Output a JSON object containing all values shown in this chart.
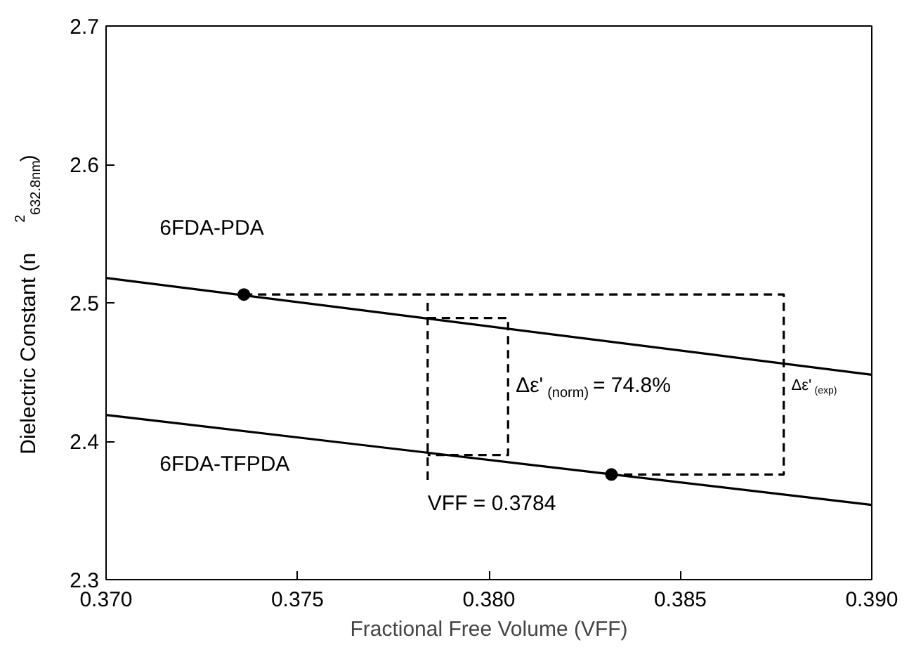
{
  "chart_data": {
    "type": "line",
    "xlabel": "Fractional Free Volume (VFF)",
    "ylabel": "Dielectric Constant (n$^{2}$$_{632.8nm}$)",
    "xlim": [
      0.37,
      0.39
    ],
    "xticks": [
      {
        "value": 0.37,
        "label": "0.370"
      },
      0.375,
      {
        "value": 0.38,
        "label": "0.380"
      },
      0.385,
      {
        "value": 0.39,
        "label": "0.390"
      }
    ],
    "ylim": [
      2.3,
      2.7
    ],
    "yticks": [
      2.3,
      2.4,
      2.5,
      2.6,
      2.7
    ],
    "grid": false,
    "marker": "none",
    "line_style": "solid",
    "series": [
      {
        "name": "6FDA-PDA",
        "color": "#000000",
        "x": [
          0.37,
          0.39
        ],
        "values": [
          2.518,
          2.448
        ]
      },
      {
        "name": "6FDA-TFPDA",
        "color": "#000000",
        "x": [
          0.37,
          0.39
        ],
        "values": [
          2.419,
          2.354
        ]
      },
      {
        "type": "scatter",
        "marker": "circle",
        "color": "#000000",
        "x": [
          0.3736,
          0.3832
        ],
        "values": [
          2.506,
          2.376
        ]
      },
      {
        "line_style": "dashed",
        "color": "#000000",
        "x": [
          0.3736,
          0.3877,
          0.3877,
          0.3832
        ],
        "values": [
          2.506,
          2.506,
          2.376,
          2.376
        ]
      },
      {
        "line_style": "dashed",
        "color": "#000000",
        "x": [
          0.3784,
          0.3805,
          0.3805,
          0.3784
        ],
        "values": [
          2.489,
          2.489,
          2.39,
          2.39
        ]
      },
      {
        "line_style": "dashed",
        "color": "#000000",
        "x": [
          0.3784,
          0.3784
        ],
        "values": [
          2.5,
          2.372
        ]
      }
    ],
    "annotations": [
      "Δε'$_{(norm)}$ = 74.8%",
      "Δε'$_{(exp)}$",
      "VFF = 0.3784"
    ]
  }
}
